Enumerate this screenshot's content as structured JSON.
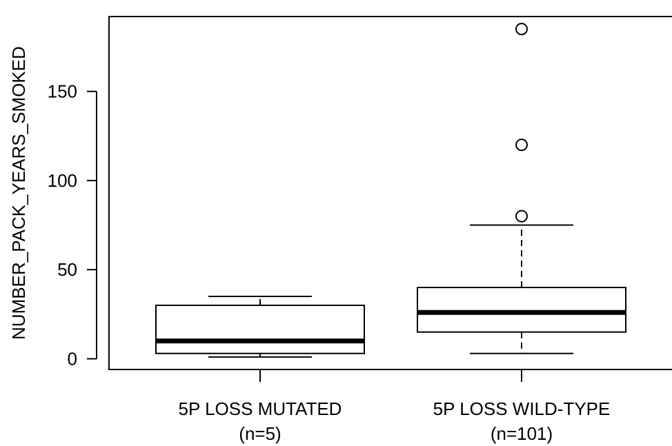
{
  "chart_data": {
    "type": "box",
    "title": "",
    "xlabel": "",
    "ylabel": "NUMBER_PACK_YEARS_SMOKED",
    "ylim": [
      -6,
      192
    ],
    "yticks": [
      0,
      50,
      100,
      150
    ],
    "ytick_labels": [
      "0",
      "50",
      "100",
      "150"
    ],
    "grid": false,
    "groups": [
      {
        "label": "5P LOSS MUTATED",
        "n_label": "(n=5)",
        "whisker_low": 1,
        "q1": 3,
        "median": 10,
        "q3": 30,
        "whisker_high": 35,
        "outliers": []
      },
      {
        "label": "5P LOSS WILD-TYPE",
        "n_label": "(n=101)",
        "whisker_low": 3,
        "q1": 15,
        "median": 26,
        "q3": 40,
        "whisker_high": 75,
        "outliers": [
          80,
          120,
          185
        ]
      }
    ]
  }
}
